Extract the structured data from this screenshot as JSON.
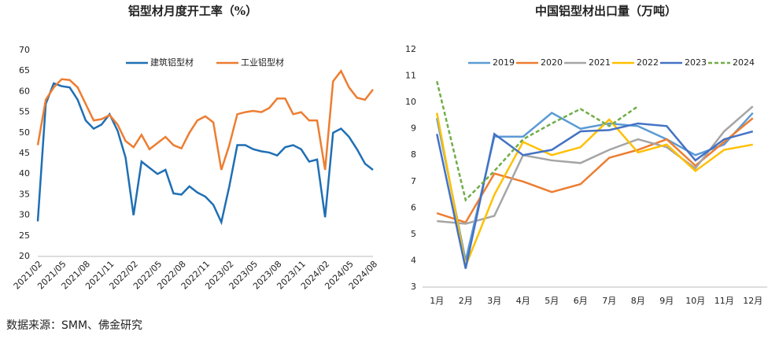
{
  "chart_data": [
    {
      "type": "line",
      "title": "铝型材月度开工率（%）",
      "categories": [
        "2021/02",
        null,
        null,
        "2021/05",
        null,
        null,
        "2021/08",
        null,
        null,
        "2021/11",
        null,
        null,
        "2022/02",
        null,
        null,
        "2022/05",
        null,
        null,
        "2022/08",
        null,
        null,
        "2022/11",
        null,
        null,
        "2023/02",
        null,
        null,
        "2023/05",
        null,
        null,
        "2023/08",
        null,
        null,
        "2023/11",
        null,
        null,
        "2024/02",
        null,
        null,
        "2024/05",
        null,
        null,
        "2024/08"
      ],
      "series": [
        {
          "name": "建筑铝型材",
          "color": "#1f6fb4",
          "values": [
            28.5,
            57,
            62,
            61.3,
            61,
            58,
            53,
            51,
            52,
            54.5,
            50.5,
            44,
            30,
            43,
            41.5,
            40,
            41,
            35.3,
            35,
            37,
            35.5,
            34.5,
            32.5,
            28.3,
            37,
            47,
            47,
            46,
            45.5,
            45.2,
            44.5,
            46.5,
            47,
            46,
            43,
            43.5,
            29.5,
            50,
            51,
            49,
            46,
            42.5,
            41
          ]
        },
        {
          "name": "工业铝型材",
          "color": "#ed7d31",
          "values": [
            47,
            58,
            61,
            63,
            62.8,
            61,
            57,
            53,
            53.3,
            54.3,
            52,
            48,
            46.5,
            49.5,
            46,
            47.5,
            49,
            47,
            46.2,
            50,
            53,
            54,
            52.5,
            41,
            47,
            54.5,
            55,
            55.3,
            55,
            56,
            58.3,
            58.3,
            54.5,
            55,
            53,
            53,
            41,
            62.5,
            65,
            61,
            58.5,
            58,
            60.5
          ]
        }
      ],
      "ylim": [
        20,
        70
      ],
      "yticks": [
        20,
        25,
        30,
        35,
        40,
        45,
        50,
        55,
        60,
        65,
        70
      ],
      "grid": false
    },
    {
      "type": "line",
      "title": "中国铝型材出口量（万吨）",
      "categories": [
        "1月",
        "2月",
        "3月",
        "4月",
        "5月",
        "6月",
        "7月",
        "8月",
        "9月",
        "10月",
        "11月",
        "12月"
      ],
      "series": [
        {
          "name": "2019",
          "color": "#5b9bd5",
          "values": [
            9.4,
            4.0,
            8.7,
            8.7,
            9.6,
            9.0,
            9.2,
            9.1,
            8.6,
            8.0,
            8.4,
            9.6
          ]
        },
        {
          "name": "2020",
          "color": "#ed7d31",
          "values": [
            5.8,
            5.45,
            7.3,
            7.0,
            6.6,
            6.9,
            7.9,
            8.2,
            8.6,
            7.6,
            8.5,
            9.4
          ]
        },
        {
          "name": "2021",
          "color": "#a5a5a5",
          "values": [
            5.5,
            5.4,
            5.7,
            8.0,
            7.8,
            7.7,
            8.2,
            8.6,
            8.3,
            7.5,
            8.9,
            9.85
          ]
        },
        {
          "name": "2022",
          "color": "#ffc000",
          "values": [
            9.6,
            3.8,
            6.5,
            8.5,
            8.0,
            8.3,
            9.35,
            8.1,
            8.4,
            7.4,
            8.2,
            8.4
          ]
        },
        {
          "name": "2023",
          "color": "#4472c4",
          "values": [
            8.8,
            3.7,
            8.8,
            8.0,
            8.2,
            8.9,
            8.95,
            9.2,
            9.1,
            7.8,
            8.6,
            8.9
          ]
        },
        {
          "name": "2024",
          "color": "#70ad47",
          "style": "dashed",
          "values": [
            10.8,
            6.3,
            7.4,
            8.6,
            9.2,
            9.75,
            9.1,
            9.85,
            null,
            null,
            null,
            null
          ]
        }
      ],
      "ylim": [
        3,
        12
      ],
      "yticks": [
        3,
        4,
        5,
        6,
        7,
        8,
        9,
        10,
        11,
        12
      ],
      "grid": false
    }
  ],
  "source": "数据来源：SMM、佛金研究"
}
